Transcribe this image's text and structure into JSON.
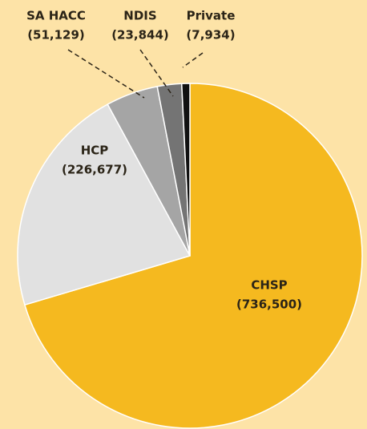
{
  "chart_data": {
    "type": "pie",
    "categories": [
      "CHSP",
      "HCP",
      "SA HACC",
      "NDIS",
      "Private"
    ],
    "values": [
      736500,
      226677,
      51129,
      23844,
      7934
    ],
    "value_labels": [
      "(736,500)",
      "(226,677)",
      "(51,129)",
      "(23,844)",
      "(7,934)"
    ],
    "colors": [
      "#f5b91f",
      "#e1e1e1",
      "#a5a5a5",
      "#747474",
      "#111111"
    ]
  }
}
